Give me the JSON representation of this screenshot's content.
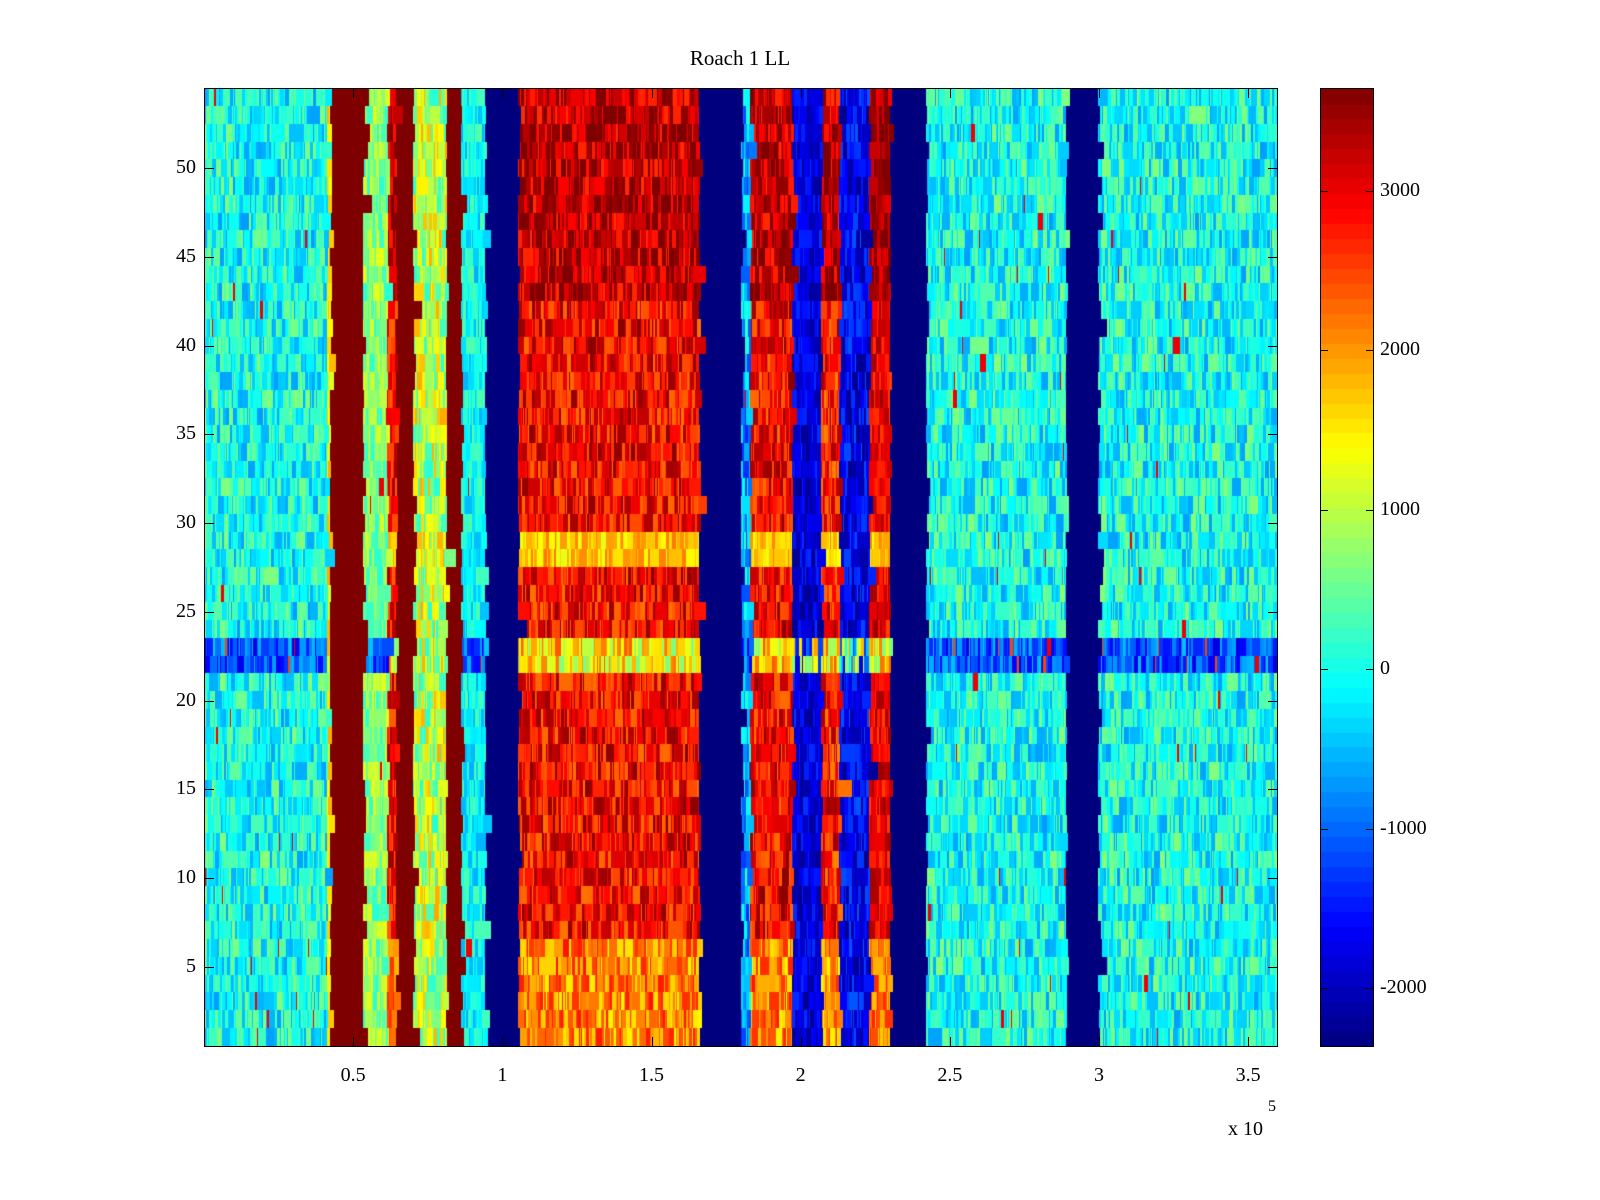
{
  "chart_data": {
    "type": "heatmap",
    "title": "Roach 1 LL",
    "xlabel": "",
    "ylabel": "",
    "x_multiplier": "x 10",
    "x_multiplier_exponent": "5",
    "xlim": [
      0,
      3.6
    ],
    "ylim": [
      0.5,
      54.5
    ],
    "rows": 54,
    "xticks": [
      0.5,
      1,
      1.5,
      2,
      2.5,
      3,
      3.5
    ],
    "xtick_labels": [
      "0.5",
      "1",
      "1.5",
      "2",
      "2.5",
      "3",
      "3.5"
    ],
    "yticks": [
      5,
      10,
      15,
      20,
      25,
      30,
      35,
      40,
      45,
      50
    ],
    "ytick_labels": [
      "5",
      "10",
      "15",
      "20",
      "25",
      "30",
      "35",
      "40",
      "45",
      "50"
    ],
    "colormap": "jet",
    "clim": [
      -2370,
      3646
    ],
    "colorbar_ticks": [
      -2000,
      -1000,
      0,
      1000,
      2000,
      3000
    ],
    "colorbar_tick_labels": [
      "-2000",
      "-1000",
      "0",
      "1000",
      "2000",
      "3000"
    ],
    "column_bands_x1e5": [
      {
        "x0": 0.0,
        "x1": 0.41,
        "value": 0,
        "noise": 700
      },
      {
        "x0": 0.41,
        "x1": 0.42,
        "value": 1500,
        "noise": 400
      },
      {
        "x0": 0.42,
        "x1": 0.53,
        "value": 3646,
        "noise": 0
      },
      {
        "x0": 0.53,
        "x1": 0.61,
        "value": 700,
        "noise": 600
      },
      {
        "x0": 0.61,
        "x1": 0.64,
        "value": 2900,
        "noise": 600
      },
      {
        "x0": 0.64,
        "x1": 0.7,
        "value": 3646,
        "noise": 0
      },
      {
        "x0": 0.7,
        "x1": 0.81,
        "value": 1000,
        "noise": 900
      },
      {
        "x0": 0.81,
        "x1": 0.86,
        "value": 3646,
        "noise": 0
      },
      {
        "x0": 0.86,
        "x1": 0.94,
        "value": -100,
        "noise": 500
      },
      {
        "x0": 0.94,
        "x1": 1.05,
        "value": -2370,
        "noise": 0
      },
      {
        "x0": 1.05,
        "x1": 1.66,
        "value": 2900,
        "noise": 700
      },
      {
        "x0": 1.66,
        "x1": 1.8,
        "value": -2370,
        "noise": 0
      },
      {
        "x0": 1.8,
        "x1": 1.83,
        "value": -600,
        "noise": 800
      },
      {
        "x0": 1.83,
        "x1": 1.97,
        "value": 2900,
        "noise": 700
      },
      {
        "x0": 1.97,
        "x1": 2.07,
        "value": -1800,
        "noise": 500
      },
      {
        "x0": 2.07,
        "x1": 2.13,
        "value": 2800,
        "noise": 700
      },
      {
        "x0": 2.13,
        "x1": 2.23,
        "value": -1700,
        "noise": 600
      },
      {
        "x0": 2.23,
        "x1": 2.3,
        "value": 3000,
        "noise": 500
      },
      {
        "x0": 2.3,
        "x1": 2.42,
        "value": -2370,
        "noise": 0
      },
      {
        "x0": 2.42,
        "x1": 2.89,
        "value": 0,
        "noise": 700
      },
      {
        "x0": 2.89,
        "x1": 3.0,
        "value": -2370,
        "noise": 0
      },
      {
        "x0": 3.0,
        "x1": 3.6,
        "value": 0,
        "noise": 700
      }
    ],
    "row_effects": [
      {
        "rows": [
          22,
          23
        ],
        "effect": "cool rows: cyan bands shift to about -1200, red bands shift to yellow (~1500)"
      },
      {
        "rows": [
          28,
          29
        ],
        "effect": "red bands shift to yellow/orange (~1800)"
      },
      {
        "rows": [
          43,
          54
        ],
        "effect": "red bands darker (~3300)"
      },
      {
        "rows": [
          1,
          6
        ],
        "effect": "red bands lighter (~2000)"
      }
    ]
  }
}
